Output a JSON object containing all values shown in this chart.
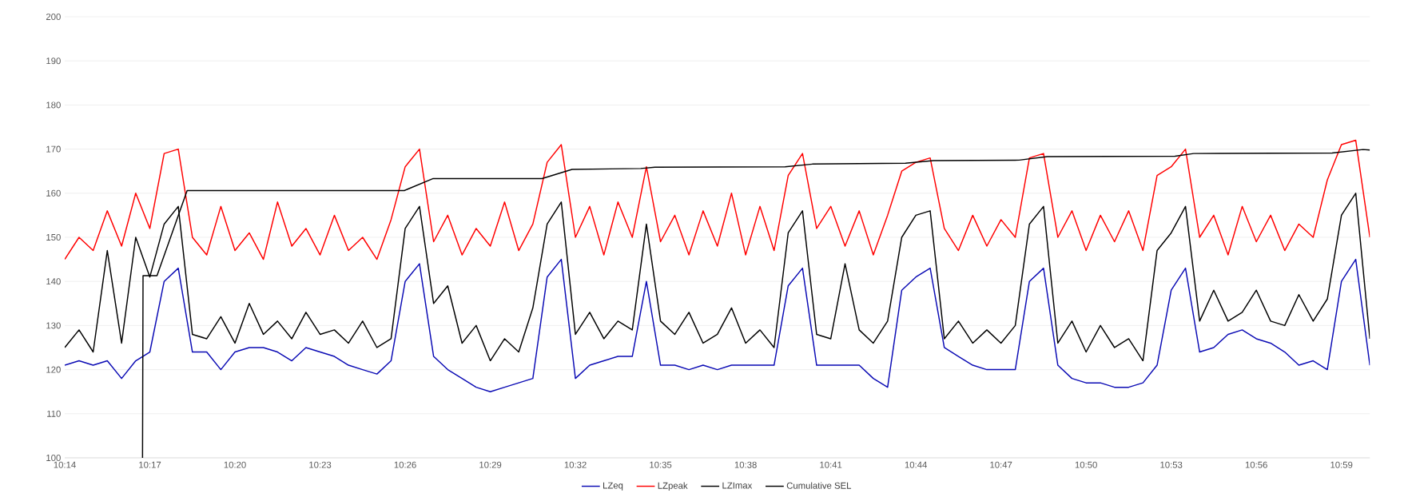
{
  "chart_data": {
    "type": "line",
    "x": [
      10.2333,
      10.2417,
      10.25,
      10.2583,
      10.2667,
      10.275,
      10.2833,
      10.2917,
      10.3,
      10.3083,
      10.3167,
      10.325,
      10.3333,
      10.3417,
      10.35,
      10.3583,
      10.3667,
      10.375,
      10.3833,
      10.3917,
      10.4,
      10.4083,
      10.4167,
      10.425,
      10.4333,
      10.4417,
      10.45,
      10.4583,
      10.4667,
      10.475,
      10.4833,
      10.4917,
      10.5,
      10.5083,
      10.5167,
      10.525,
      10.5333,
      10.5417,
      10.55,
      10.5583,
      10.5667,
      10.575,
      10.5833,
      10.5917,
      10.6,
      10.6083,
      10.6167,
      10.625,
      10.6333,
      10.6417,
      10.65,
      10.6583,
      10.6667,
      10.675,
      10.6833,
      10.6917,
      10.7,
      10.7083,
      10.7167,
      10.725,
      10.7333,
      10.7417,
      10.75,
      10.7583,
      10.7667,
      10.775,
      10.7833,
      10.7917,
      10.8,
      10.8083,
      10.8167,
      10.825,
      10.8333,
      10.8417,
      10.85,
      10.8583,
      10.8667,
      10.875,
      10.8833,
      10.8917,
      10.9,
      10.9083,
      10.9167,
      10.925,
      10.9333,
      10.9417,
      10.95,
      10.9583,
      10.9667,
      10.975,
      10.9833,
      10.9917,
      11.0
    ],
    "series": [
      {
        "name": "LZeq",
        "color": "#0a0ab4",
        "values": [
          121,
          122,
          121,
          122,
          118,
          122,
          124,
          140,
          143,
          124,
          124,
          120,
          124,
          125,
          125,
          124,
          122,
          125,
          124,
          123,
          121,
          120,
          119,
          122,
          140,
          144,
          123,
          120,
          118,
          116,
          115,
          116,
          117,
          118,
          141,
          145,
          118,
          121,
          122,
          123,
          123,
          140,
          121,
          121,
          120,
          121,
          120,
          121,
          121,
          121,
          121,
          139,
          143,
          121,
          121,
          121,
          121,
          118,
          116,
          138,
          141,
          143,
          125,
          123,
          121,
          120,
          120,
          120,
          140,
          143,
          121,
          118,
          117,
          117,
          116,
          116,
          117,
          121,
          138,
          143,
          124,
          125,
          128,
          129,
          127,
          126,
          124,
          121,
          122,
          120,
          140,
          145,
          121
        ]
      },
      {
        "name": "LZpeak",
        "color": "#ff0000",
        "values": [
          145,
          150,
          147,
          156,
          148,
          160,
          152,
          169,
          170,
          150,
          146,
          157,
          147,
          151,
          145,
          158,
          148,
          152,
          146,
          155,
          147,
          150,
          145,
          154,
          166,
          170,
          149,
          155,
          146,
          152,
          148,
          158,
          147,
          153,
          167,
          171,
          150,
          157,
          146,
          158,
          150,
          166,
          149,
          155,
          146,
          156,
          148,
          160,
          146,
          157,
          147,
          164,
          169,
          152,
          157,
          148,
          156,
          146,
          155,
          165,
          167,
          168,
          152,
          147,
          155,
          148,
          154,
          150,
          168,
          169,
          150,
          156,
          147,
          155,
          149,
          156,
          147,
          164,
          166,
          170,
          150,
          155,
          146,
          157,
          149,
          155,
          147,
          153,
          150,
          163,
          171,
          172,
          150
        ]
      },
      {
        "name": "LZImax",
        "color": "#000000",
        "values": [
          125,
          129,
          124,
          147,
          126,
          150,
          141,
          153,
          157,
          128,
          127,
          132,
          126,
          135,
          128,
          131,
          127,
          133,
          128,
          129,
          126,
          131,
          125,
          127,
          152,
          157,
          135,
          139,
          126,
          130,
          122,
          127,
          124,
          134,
          153,
          158,
          128,
          133,
          127,
          131,
          129,
          153,
          131,
          128,
          133,
          126,
          128,
          134,
          126,
          129,
          125,
          151,
          156,
          128,
          127,
          144,
          129,
          126,
          131,
          150,
          155,
          156,
          127,
          131,
          126,
          129,
          126,
          130,
          153,
          157,
          126,
          131,
          124,
          130,
          125,
          127,
          122,
          147,
          151,
          157,
          131,
          138,
          131,
          133,
          138,
          131,
          130,
          137,
          131,
          136,
          155,
          160,
          127
        ]
      },
      {
        "name": "Cumulative SEL",
        "color": "#000000",
        "x": [
          10.279,
          10.2793,
          10.2875,
          10.3052,
          10.4328,
          10.4495,
          10.5137,
          10.5313,
          10.5717,
          10.58,
          10.6565,
          10.6725,
          10.7272,
          10.7437,
          10.794,
          10.8105,
          10.8855,
          10.8965,
          10.9778,
          10.996,
          11.0
        ],
        "values": [
          100,
          141.3,
          141.3,
          160.6,
          160.6,
          163.3,
          163.3,
          165.4,
          165.6,
          165.9,
          166.0,
          166.6,
          166.8,
          167.4,
          167.5,
          168.3,
          168.4,
          169.0,
          169.1,
          169.9,
          169.8
        ]
      }
    ],
    "xlim": [
      10.2333,
      11.0
    ],
    "xticks": [
      {
        "value": 10.2333,
        "label": "10:14"
      },
      {
        "value": 10.2833,
        "label": "10:17"
      },
      {
        "value": 10.3333,
        "label": "10:20"
      },
      {
        "value": 10.3833,
        "label": "10:23"
      },
      {
        "value": 10.4333,
        "label": "10:26"
      },
      {
        "value": 10.4833,
        "label": "10:29"
      },
      {
        "value": 10.5333,
        "label": "10:32"
      },
      {
        "value": 10.5833,
        "label": "10:35"
      },
      {
        "value": 10.6333,
        "label": "10:38"
      },
      {
        "value": 10.6833,
        "label": "10:41"
      },
      {
        "value": 10.7333,
        "label": "10:44"
      },
      {
        "value": 10.7833,
        "label": "10:47"
      },
      {
        "value": 10.8333,
        "label": "10:50"
      },
      {
        "value": 10.8833,
        "label": "10:53"
      },
      {
        "value": 10.9333,
        "label": "10:56"
      },
      {
        "value": 10.9833,
        "label": "10:59"
      }
    ],
    "ylim": [
      100,
      200
    ],
    "yticks": [
      100,
      110,
      120,
      130,
      140,
      150,
      160,
      170,
      180,
      190,
      200
    ],
    "grid": "y",
    "legend": "bottom"
  }
}
